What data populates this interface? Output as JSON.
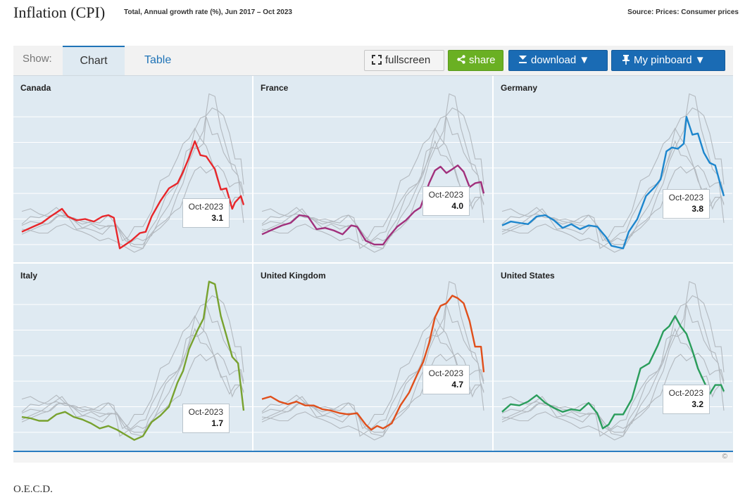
{
  "header": {
    "title": "Inflation (CPI)",
    "subtitle": "Total, Annual growth rate (%), Jun 2017 – Oct 2023",
    "source": "Source: Prices: Consumer prices"
  },
  "toolbar": {
    "show_label": "Show:",
    "tabs": [
      {
        "label": "Chart",
        "active": true
      },
      {
        "label": "Table",
        "active": false
      }
    ],
    "fullscreen_label": "fullscreen",
    "share_label": "share",
    "download_label": "download ▼",
    "pinboard_label": "My pinboard ▼"
  },
  "colors": {
    "accent": "#1f73b7",
    "background_lines": "#b3b9bf",
    "gridline": "#ffffff",
    "panel_bg": "#dfeaf2"
  },
  "footer": {
    "text": "O.E.C.D.",
    "copyright": "©"
  },
  "chart_data": {
    "type": "line",
    "layout": "small multiples (2 rows × 3 columns)",
    "x_range": [
      "Jun 2017",
      "Oct 2023"
    ],
    "y_range": [
      -1,
      11
    ],
    "gridlines": [
      0,
      2,
      4,
      6,
      8,
      10
    ],
    "grid": true,
    "tooltip_date": "Oct-2023",
    "panels": [
      {
        "name": "Canada",
        "color": "#e8262a",
        "tooltip_value": "3.1",
        "series": [
          [
            2017.42,
            1.0
          ],
          [
            2017.75,
            1.4
          ],
          [
            2018.0,
            1.7
          ],
          [
            2018.25,
            2.2
          ],
          [
            2018.42,
            2.5
          ],
          [
            2018.58,
            2.8
          ],
          [
            2018.75,
            2.2
          ],
          [
            2019.0,
            1.9
          ],
          [
            2019.25,
            2.0
          ],
          [
            2019.5,
            1.8
          ],
          [
            2019.75,
            2.2
          ],
          [
            2019.92,
            2.3
          ],
          [
            2020.08,
            2.1
          ],
          [
            2020.25,
            -0.3
          ],
          [
            2020.42,
            0.0
          ],
          [
            2020.58,
            0.3
          ],
          [
            2020.83,
            0.9
          ],
          [
            2021.0,
            1.0
          ],
          [
            2021.17,
            2.2
          ],
          [
            2021.42,
            3.4
          ],
          [
            2021.67,
            4.4
          ],
          [
            2021.92,
            4.8
          ],
          [
            2022.08,
            5.7
          ],
          [
            2022.25,
            6.8
          ],
          [
            2022.42,
            8.1
          ],
          [
            2022.58,
            7.0
          ],
          [
            2022.75,
            6.9
          ],
          [
            2023.0,
            5.9
          ],
          [
            2023.17,
            4.3
          ],
          [
            2023.33,
            4.4
          ],
          [
            2023.5,
            2.8
          ],
          [
            2023.58,
            3.3
          ],
          [
            2023.75,
            3.8
          ],
          [
            2023.83,
            3.1
          ]
        ]
      },
      {
        "name": "France",
        "color": "#a1307c",
        "tooltip_value": "4.0",
        "series": [
          [
            2017.42,
            0.8
          ],
          [
            2017.75,
            1.2
          ],
          [
            2018.0,
            1.5
          ],
          [
            2018.25,
            1.7
          ],
          [
            2018.5,
            2.3
          ],
          [
            2018.75,
            2.2
          ],
          [
            2019.0,
            1.2
          ],
          [
            2019.25,
            1.3
          ],
          [
            2019.5,
            1.1
          ],
          [
            2019.75,
            0.8
          ],
          [
            2020.0,
            1.5
          ],
          [
            2020.17,
            1.4
          ],
          [
            2020.42,
            0.3
          ],
          [
            2020.67,
            0.0
          ],
          [
            2020.92,
            0.0
          ],
          [
            2021.08,
            0.6
          ],
          [
            2021.33,
            1.4
          ],
          [
            2021.58,
            1.9
          ],
          [
            2021.83,
            2.6
          ],
          [
            2022.0,
            2.9
          ],
          [
            2022.25,
            4.8
          ],
          [
            2022.42,
            5.8
          ],
          [
            2022.58,
            6.1
          ],
          [
            2022.75,
            5.6
          ],
          [
            2022.92,
            5.9
          ],
          [
            2023.08,
            6.2
          ],
          [
            2023.25,
            5.7
          ],
          [
            2023.42,
            4.5
          ],
          [
            2023.58,
            4.8
          ],
          [
            2023.75,
            4.9
          ],
          [
            2023.83,
            4.0
          ]
        ]
      },
      {
        "name": "Germany",
        "color": "#1d86cd",
        "tooltip_value": "3.8",
        "series": [
          [
            2017.42,
            1.5
          ],
          [
            2017.67,
            1.8
          ],
          [
            2017.92,
            1.7
          ],
          [
            2018.17,
            1.6
          ],
          [
            2018.42,
            2.2
          ],
          [
            2018.67,
            2.3
          ],
          [
            2018.92,
            1.9
          ],
          [
            2019.17,
            1.3
          ],
          [
            2019.42,
            1.6
          ],
          [
            2019.67,
            1.2
          ],
          [
            2019.92,
            1.5
          ],
          [
            2020.17,
            1.4
          ],
          [
            2020.42,
            0.6
          ],
          [
            2020.58,
            -0.1
          ],
          [
            2020.75,
            -0.2
          ],
          [
            2020.92,
            -0.3
          ],
          [
            2021.08,
            1.0
          ],
          [
            2021.33,
            2.0
          ],
          [
            2021.58,
            3.8
          ],
          [
            2021.83,
            4.5
          ],
          [
            2022.0,
            5.1
          ],
          [
            2022.17,
            7.3
          ],
          [
            2022.33,
            7.6
          ],
          [
            2022.5,
            7.5
          ],
          [
            2022.67,
            7.9
          ],
          [
            2022.75,
            10.0
          ],
          [
            2022.92,
            8.6
          ],
          [
            2023.08,
            8.7
          ],
          [
            2023.25,
            7.2
          ],
          [
            2023.42,
            6.4
          ],
          [
            2023.58,
            6.2
          ],
          [
            2023.75,
            4.5
          ],
          [
            2023.83,
            3.8
          ]
        ]
      },
      {
        "name": "Italy",
        "color": "#78a22f",
        "tooltip_value": "1.7",
        "series": [
          [
            2017.42,
            1.2
          ],
          [
            2017.67,
            1.1
          ],
          [
            2017.92,
            0.9
          ],
          [
            2018.17,
            0.9
          ],
          [
            2018.42,
            1.4
          ],
          [
            2018.67,
            1.6
          ],
          [
            2018.92,
            1.2
          ],
          [
            2019.17,
            1.0
          ],
          [
            2019.42,
            0.7
          ],
          [
            2019.67,
            0.3
          ],
          [
            2019.92,
            0.5
          ],
          [
            2020.17,
            0.2
          ],
          [
            2020.42,
            -0.2
          ],
          [
            2020.67,
            -0.6
          ],
          [
            2020.92,
            -0.3
          ],
          [
            2021.17,
            0.8
          ],
          [
            2021.42,
            1.3
          ],
          [
            2021.67,
            2.0
          ],
          [
            2021.92,
            3.9
          ],
          [
            2022.08,
            4.8
          ],
          [
            2022.25,
            6.5
          ],
          [
            2022.5,
            8.0
          ],
          [
            2022.67,
            8.9
          ],
          [
            2022.83,
            11.8
          ],
          [
            2023.0,
            11.6
          ],
          [
            2023.17,
            9.1
          ],
          [
            2023.33,
            7.6
          ],
          [
            2023.5,
            5.9
          ],
          [
            2023.67,
            5.4
          ],
          [
            2023.83,
            1.7
          ]
        ]
      },
      {
        "name": "United Kingdom",
        "color": "#e04f1b",
        "tooltip_value": "4.7",
        "series": [
          [
            2017.42,
            2.6
          ],
          [
            2017.67,
            2.8
          ],
          [
            2017.92,
            2.4
          ],
          [
            2018.17,
            2.2
          ],
          [
            2018.42,
            2.4
          ],
          [
            2018.67,
            2.1
          ],
          [
            2018.92,
            2.1
          ],
          [
            2019.17,
            1.8
          ],
          [
            2019.42,
            1.7
          ],
          [
            2019.67,
            1.5
          ],
          [
            2019.92,
            1.4
          ],
          [
            2020.17,
            1.5
          ],
          [
            2020.42,
            0.6
          ],
          [
            2020.58,
            0.2
          ],
          [
            2020.75,
            0.5
          ],
          [
            2020.92,
            0.3
          ],
          [
            2021.17,
            0.7
          ],
          [
            2021.42,
            2.1
          ],
          [
            2021.67,
            3.1
          ],
          [
            2021.92,
            4.6
          ],
          [
            2022.08,
            5.5
          ],
          [
            2022.25,
            7.0
          ],
          [
            2022.42,
            9.0
          ],
          [
            2022.58,
            9.9
          ],
          [
            2022.75,
            10.1
          ],
          [
            2022.92,
            10.7
          ],
          [
            2023.08,
            10.5
          ],
          [
            2023.25,
            10.1
          ],
          [
            2023.42,
            8.7
          ],
          [
            2023.58,
            6.7
          ],
          [
            2023.75,
            6.7
          ],
          [
            2023.83,
            4.7
          ]
        ]
      },
      {
        "name": "United States",
        "color": "#2a9d5b",
        "tooltip_value": "3.2",
        "series": [
          [
            2017.42,
            1.6
          ],
          [
            2017.67,
            2.2
          ],
          [
            2017.92,
            2.1
          ],
          [
            2018.17,
            2.4
          ],
          [
            2018.42,
            2.9
          ],
          [
            2018.67,
            2.3
          ],
          [
            2018.92,
            1.9
          ],
          [
            2019.17,
            1.6
          ],
          [
            2019.42,
            1.8
          ],
          [
            2019.67,
            1.7
          ],
          [
            2019.92,
            2.3
          ],
          [
            2020.17,
            1.5
          ],
          [
            2020.33,
            0.3
          ],
          [
            2020.5,
            0.6
          ],
          [
            2020.67,
            1.4
          ],
          [
            2020.92,
            1.4
          ],
          [
            2021.17,
            2.6
          ],
          [
            2021.42,
            5.0
          ],
          [
            2021.67,
            5.4
          ],
          [
            2021.92,
            6.8
          ],
          [
            2022.08,
            7.9
          ],
          [
            2022.25,
            8.3
          ],
          [
            2022.42,
            9.1
          ],
          [
            2022.58,
            8.3
          ],
          [
            2022.75,
            7.7
          ],
          [
            2022.92,
            6.4
          ],
          [
            2023.08,
            5.0
          ],
          [
            2023.25,
            4.0
          ],
          [
            2023.42,
            3.0
          ],
          [
            2023.58,
            3.7
          ],
          [
            2023.75,
            3.7
          ],
          [
            2023.83,
            3.2
          ]
        ]
      }
    ]
  }
}
